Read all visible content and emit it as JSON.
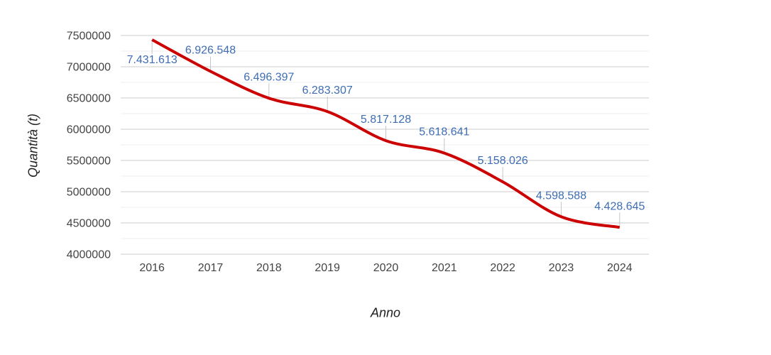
{
  "chart_data": {
    "type": "line",
    "title": "",
    "xlabel": "Anno",
    "ylabel": "Quantità (t)",
    "categories": [
      "2016",
      "2017",
      "2018",
      "2019",
      "2020",
      "2021",
      "2022",
      "2023",
      "2024"
    ],
    "series": [
      {
        "values": [
          7431613,
          6926548,
          6496397,
          6283307,
          5817128,
          5618641,
          5158026,
          4598588,
          4428645
        ],
        "color": "#cc0000",
        "line_width": 4,
        "curve": "smooth"
      }
    ],
    "annotations": {
      "labels": [
        "7.431.613",
        "6.926.548",
        "6.496.397",
        "6.283.307",
        "5.817.128",
        "5.618.641",
        "5.158.026",
        "4.598.588",
        "4.428.645"
      ],
      "placements": [
        "below",
        "above",
        "above",
        "above",
        "above",
        "above",
        "above",
        "above",
        "above"
      ],
      "text_color": "#3e6db4",
      "stem_color": "#c6c6c6"
    },
    "ylim": [
      4000000,
      7500000
    ],
    "y_major_step": 500000,
    "y_minor_step": 250000,
    "y_tick_labels": [
      "4000000",
      "4500000",
      "5000000",
      "5500000",
      "6000000",
      "6500000",
      "7000000",
      "7500000"
    ],
    "grid": true,
    "legend": "none",
    "colors": {
      "grid_major": "#cccccc",
      "grid_minor": "#efefef",
      "tick_text": "#444444",
      "axis_title_text": "#222222",
      "background": "#ffffff"
    }
  }
}
